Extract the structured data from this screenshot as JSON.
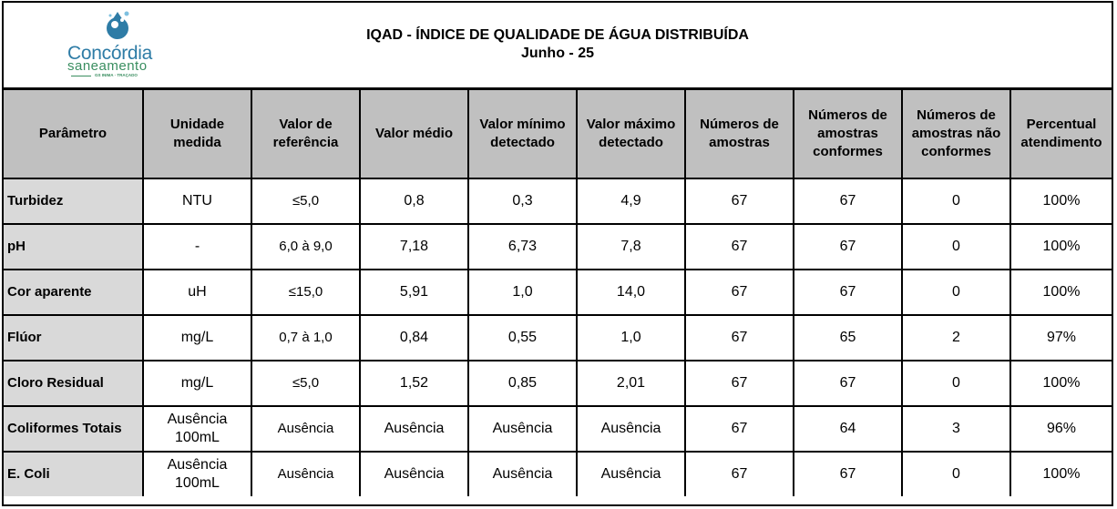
{
  "logo": {
    "name": "Concórdia",
    "sub": "saneamento",
    "tag": "GS INIMA · TRAÇADO",
    "colors": {
      "drop": "#2e7ca6",
      "text_blue": "#2e7ca6",
      "text_green": "#3a8e60"
    }
  },
  "header": {
    "title": "IQAD - ÍNDICE DE QUALIDADE DE ÁGUA DISTRIBUÍDA",
    "subtitle": "Junho - 25"
  },
  "table": {
    "columns": [
      "Parâmetro",
      "Unidade medida",
      "Valor de referência",
      "Valor médio",
      "Valor mínimo detectado",
      "Valor máximo detectado",
      "Números de amostras",
      "Números de amostras conformes",
      "Números de amostras não conformes",
      "Percentual atendimento"
    ],
    "rows": [
      {
        "parametro": "Turbidez",
        "unidade": "NTU",
        "referencia": "≤5,0",
        "medio": "0,8",
        "minimo": "0,3",
        "maximo": "4,9",
        "amostras": "67",
        "conformes": "67",
        "nao_conformes": "0",
        "percentual": "100%"
      },
      {
        "parametro": "pH",
        "unidade": "-",
        "referencia": "6,0 à 9,0",
        "medio": "7,18",
        "minimo": "6,73",
        "maximo": "7,8",
        "amostras": "67",
        "conformes": "67",
        "nao_conformes": "0",
        "percentual": "100%"
      },
      {
        "parametro": "Cor aparente",
        "unidade": "uH",
        "referencia": "≤15,0",
        "medio": "5,91",
        "minimo": "1,0",
        "maximo": "14,0",
        "amostras": "67",
        "conformes": "67",
        "nao_conformes": "0",
        "percentual": "100%"
      },
      {
        "parametro": "Flúor",
        "unidade": "mg/L",
        "referencia": "0,7 à 1,0",
        "medio": "0,84",
        "minimo": "0,55",
        "maximo": "1,0",
        "amostras": "67",
        "conformes": "65",
        "nao_conformes": "2",
        "percentual": "97%"
      },
      {
        "parametro": "Cloro Residual",
        "unidade": "mg/L",
        "referencia": "≤5,0",
        "medio": "1,52",
        "minimo": "0,85",
        "maximo": "2,01",
        "amostras": "67",
        "conformes": "67",
        "nao_conformes": "0",
        "percentual": "100%"
      },
      {
        "parametro": "Coliformes Totais",
        "unidade": "Ausência 100mL",
        "referencia": "Ausência",
        "medio": "Ausência",
        "minimo": "Ausência",
        "maximo": "Ausência",
        "amostras": "67",
        "conformes": "64",
        "nao_conformes": "3",
        "percentual": "96%"
      },
      {
        "parametro": "E. Coli",
        "unidade": "Ausência 100mL",
        "referencia": "Ausência",
        "medio": "Ausência",
        "minimo": "Ausência",
        "maximo": "Ausência",
        "amostras": "67",
        "conformes": "67",
        "nao_conformes": "0",
        "percentual": "100%"
      }
    ]
  }
}
